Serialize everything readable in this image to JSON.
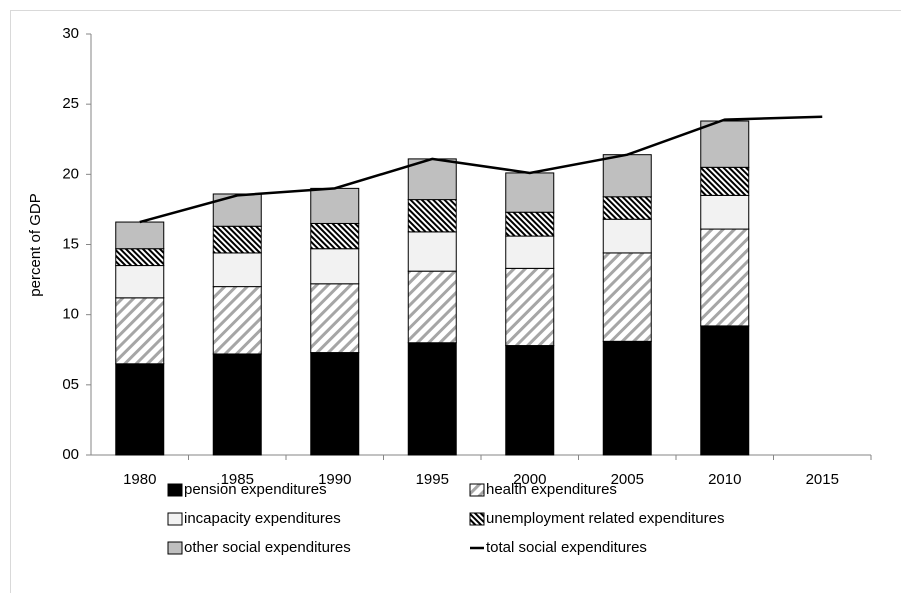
{
  "chart_data": {
    "type": "bar",
    "stacked": true,
    "y_label": "percent of GDP",
    "categories": [
      "1980",
      "1985",
      "1990",
      "1995",
      "2000",
      "2005",
      "2010",
      "2015"
    ],
    "series": [
      {
        "name": "pension expenditures",
        "color": "#000000",
        "values": [
          6.5,
          7.2,
          7.3,
          8.0,
          7.8,
          8.1,
          9.2,
          null
        ]
      },
      {
        "name": "health expenditures",
        "color": "#a6a6a6",
        "pattern": "diagonal",
        "values": [
          4.7,
          4.8,
          4.9,
          5.1,
          5.5,
          6.3,
          6.9,
          null
        ]
      },
      {
        "name": "incapacity expenditures",
        "color": "#f2f2f2",
        "values": [
          2.3,
          2.4,
          2.5,
          2.8,
          2.3,
          2.4,
          2.4,
          null
        ]
      },
      {
        "name": "unemployment related expenditures",
        "color": "#000000",
        "pattern": "dense-diagonal",
        "values": [
          1.2,
          1.9,
          1.8,
          2.3,
          1.7,
          1.6,
          2.0,
          null
        ]
      },
      {
        "name": "other social expenditures",
        "color": "#bfbfbf",
        "values": [
          1.9,
          2.3,
          2.5,
          2.9,
          2.8,
          3.0,
          3.3,
          null
        ]
      },
      {
        "name": "total social expenditures",
        "type": "line",
        "color": "#000000",
        "values": [
          16.6,
          18.5,
          19.0,
          21.1,
          20.1,
          21.4,
          23.9,
          24.1
        ]
      }
    ],
    "ylim": [
      0,
      30
    ],
    "yticks": [
      {
        "value": 0,
        "label": "00"
      },
      {
        "value": 5,
        "label": "05"
      },
      10,
      15,
      20,
      25,
      30
    ],
    "grid": false,
    "legend": "bottom"
  }
}
